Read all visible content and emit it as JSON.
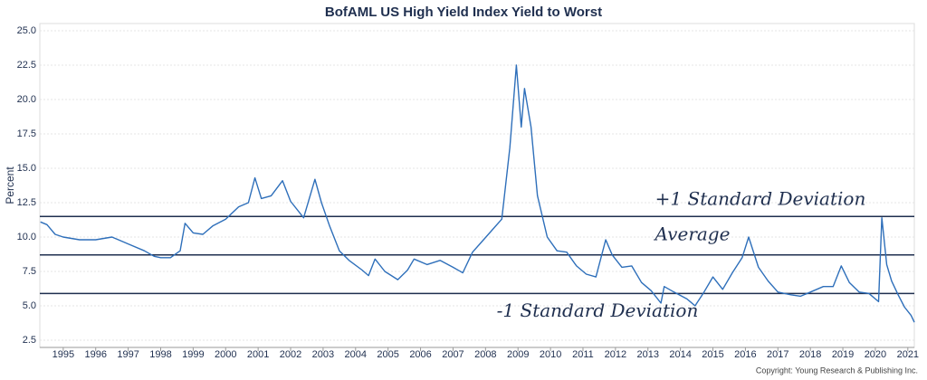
{
  "chart_data": {
    "type": "line",
    "title": "BofAML US High Yield Index Yield to Worst",
    "y_label": "Percent",
    "copyright": "Copyright: Young Research & Publishing Inc.",
    "x": [
      1994.3,
      1994.5,
      1994.75,
      1995.0,
      1995.5,
      1996.0,
      1996.5,
      1997.0,
      1997.5,
      1997.8,
      1998.0,
      1998.3,
      1998.6,
      1998.75,
      1999.0,
      1999.3,
      1999.6,
      2000.0,
      2000.4,
      2000.7,
      2000.9,
      2001.1,
      2001.4,
      2001.75,
      2002.0,
      2002.4,
      2002.75,
      2002.95,
      2003.2,
      2003.5,
      2003.8,
      2004.2,
      2004.4,
      2004.6,
      2004.9,
      2005.3,
      2005.6,
      2005.8,
      2006.2,
      2006.6,
      2007.0,
      2007.3,
      2007.6,
      2007.9,
      2008.2,
      2008.5,
      2008.75,
      2008.85,
      2008.95,
      2009.1,
      2009.2,
      2009.4,
      2009.6,
      2009.9,
      2010.2,
      2010.5,
      2010.8,
      2011.1,
      2011.4,
      2011.7,
      2011.9,
      2012.2,
      2012.5,
      2012.8,
      2013.1,
      2013.4,
      2013.5,
      2013.8,
      2014.2,
      2014.45,
      2014.7,
      2015.0,
      2015.3,
      2015.6,
      2015.9,
      2016.1,
      2016.4,
      2016.7,
      2017.0,
      2017.4,
      2017.7,
      2018.0,
      2018.4,
      2018.7,
      2018.95,
      2019.2,
      2019.5,
      2019.8,
      2020.1,
      2020.2,
      2020.35,
      2020.5,
      2020.7,
      2020.9,
      2021.1,
      2021.2
    ],
    "series": [
      {
        "name": "Yield to Worst",
        "color": "#2e6fba",
        "values": [
          11.1,
          10.9,
          10.2,
          10.0,
          9.8,
          9.8,
          10.0,
          9.5,
          9.0,
          8.6,
          8.5,
          8.5,
          9.0,
          11.0,
          10.3,
          10.2,
          10.8,
          11.3,
          12.2,
          12.5,
          14.3,
          12.8,
          13.0,
          14.1,
          12.6,
          11.4,
          14.2,
          12.5,
          10.8,
          9.0,
          8.3,
          7.6,
          7.2,
          8.4,
          7.5,
          6.9,
          7.6,
          8.4,
          8.0,
          8.3,
          7.8,
          7.4,
          8.9,
          9.7,
          10.5,
          11.3,
          16.5,
          19.5,
          22.5,
          18.0,
          20.8,
          18.0,
          13.0,
          10.0,
          9.0,
          8.9,
          7.9,
          7.3,
          7.1,
          9.8,
          8.7,
          7.8,
          7.9,
          6.7,
          6.1,
          5.2,
          6.4,
          6.0,
          5.5,
          5.0,
          5.9,
          7.1,
          6.2,
          7.4,
          8.5,
          10.0,
          7.8,
          6.8,
          6.0,
          5.8,
          5.7,
          6.0,
          6.4,
          6.4,
          7.9,
          6.7,
          6.0,
          5.9,
          5.3,
          11.4,
          8.0,
          6.8,
          5.8,
          4.9,
          4.3,
          3.8
        ]
      }
    ],
    "reference_lines": [
      {
        "label": "+1 Standard Deviation",
        "value": 11.5
      },
      {
        "label": "Average",
        "value": 8.7
      },
      {
        "label": "-1 Standard Deviation",
        "value": 5.9
      }
    ],
    "xlim": [
      1994.28,
      2021.2
    ],
    "xticks": [
      1995,
      1996,
      1997,
      1998,
      1999,
      2000,
      2001,
      2002,
      2003,
      2004,
      2005,
      2006,
      2007,
      2008,
      2009,
      2010,
      2011,
      2012,
      2013,
      2014,
      2015,
      2016,
      2017,
      2018,
      2019,
      2020,
      2021
    ],
    "ylim": [
      2.5,
      25
    ],
    "yticks": [
      2.5,
      {
        "value": 5,
        "label": "5.0"
      },
      7.5,
      {
        "value": 10,
        "label": "10.0"
      },
      12.5,
      {
        "value": 15,
        "label": "15.0"
      },
      17.5,
      {
        "value": 20,
        "label": "20.0"
      },
      22.5,
      {
        "value": 25,
        "label": "25.0"
      }
    ],
    "grid": true
  }
}
